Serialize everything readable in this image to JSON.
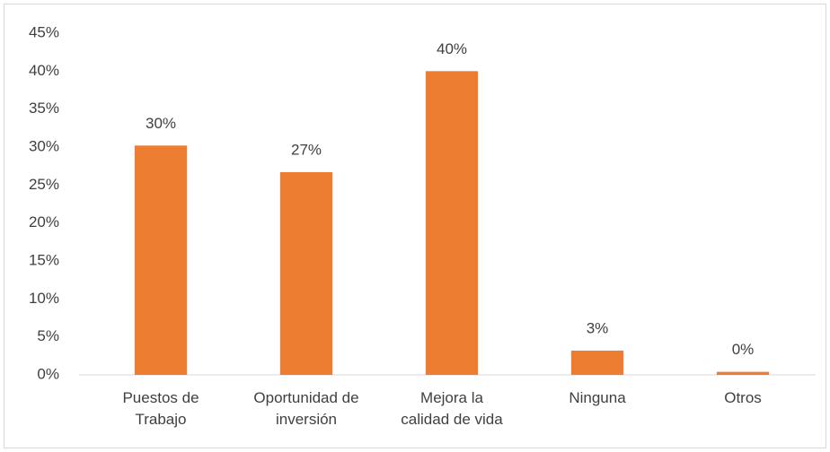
{
  "chart_data": {
    "type": "bar",
    "categories": [
      "Puestos de Trabajo",
      "Oportunidad de inversión",
      "Mejora la calidad de vida",
      "Ninguna",
      "Otros"
    ],
    "values": [
      30.2,
      26.7,
      40,
      3.2,
      0.4
    ],
    "value_labels": [
      "30%",
      "27%",
      "40%",
      "3%",
      "0%"
    ],
    "color": "#ed7d31",
    "ylim": [
      0,
      45
    ],
    "yticks": [
      {
        "value": 0,
        "label": "0%"
      },
      {
        "value": 5,
        "label": "5%"
      },
      {
        "value": 10,
        "label": "10%"
      },
      {
        "value": 15,
        "label": "15%"
      },
      {
        "value": 20,
        "label": "20%"
      },
      {
        "value": 25,
        "label": "25%"
      },
      {
        "value": 30,
        "label": "30%"
      },
      {
        "value": 35,
        "label": "35%"
      },
      {
        "value": 40,
        "label": "40%"
      },
      {
        "value": 45,
        "label": "45%"
      }
    ],
    "grid": false
  }
}
